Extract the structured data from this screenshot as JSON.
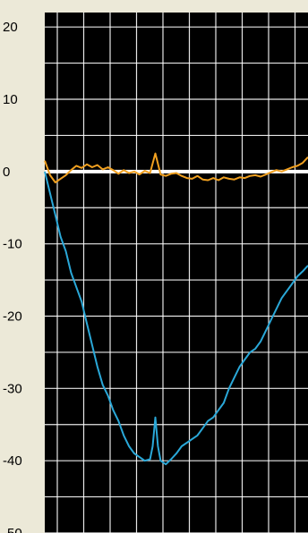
{
  "chart_data": {
    "type": "line",
    "title": "",
    "xlabel": "",
    "ylabel": "",
    "ylim": [
      -50,
      22
    ],
    "y_ticks": [
      20,
      10,
      0,
      -10,
      -20,
      -30,
      -40,
      -50
    ],
    "y_tick_labels": [
      "20",
      "10",
      "0",
      "-10",
      "-20",
      "-30",
      "-40",
      "-50"
    ],
    "grid": true,
    "background_color": "#000000",
    "grid_color": "#ffffff",
    "reference_line": {
      "y": 0,
      "color": "#ffffff"
    },
    "xlim": [
      0,
      100
    ],
    "series": [
      {
        "color": "#f0a020",
        "x": [
          0,
          2,
          4,
          6,
          8,
          10,
          12,
          14,
          16,
          18,
          20,
          22,
          24,
          26,
          28,
          30,
          32,
          34,
          36,
          38,
          40,
          42,
          44,
          46,
          48,
          50,
          52,
          54,
          56,
          58,
          60,
          62,
          64,
          66,
          68,
          70,
          72,
          74,
          76,
          78,
          80,
          82,
          84,
          86,
          88,
          90,
          92,
          94,
          96,
          98,
          100
        ],
        "values": [
          1.5,
          -0.5,
          -1.5,
          -1.0,
          -0.5,
          0.2,
          0.8,
          0.5,
          1.0,
          0.6,
          0.9,
          0.3,
          0.6,
          0.2,
          -0.3,
          0.2,
          -0.2,
          0.0,
          -0.4,
          0.1,
          -0.2,
          2.5,
          -0.4,
          -0.6,
          -0.3,
          -0.2,
          -0.6,
          -0.9,
          -1.0,
          -0.6,
          -1.1,
          -1.2,
          -0.9,
          -1.2,
          -0.8,
          -1.0,
          -1.1,
          -0.8,
          -0.9,
          -0.6,
          -0.5,
          -0.7,
          -0.4,
          -0.1,
          0.2,
          0.0,
          0.3,
          0.6,
          0.8,
          1.2,
          2.0
        ]
      },
      {
        "color": "#2aa8d8",
        "x": [
          0,
          2,
          4,
          6,
          8,
          10,
          12,
          14,
          16,
          18,
          20,
          22,
          24,
          26,
          28,
          30,
          32,
          34,
          36,
          38,
          40,
          41,
          42,
          43,
          44,
          46,
          48,
          50,
          52,
          54,
          56,
          58,
          60,
          62,
          64,
          66,
          68,
          70,
          72,
          74,
          76,
          78,
          80,
          82,
          84,
          86,
          88,
          90,
          92,
          94,
          96,
          98,
          100
        ],
        "values": [
          0,
          -3,
          -6,
          -9,
          -11,
          -14,
          -16,
          -18,
          -21,
          -24,
          -27,
          -29.5,
          -31,
          -33,
          -34.5,
          -36.5,
          -38,
          -39,
          -39.5,
          -40,
          -39.8,
          -38,
          -34,
          -38,
          -40,
          -40.5,
          -39.8,
          -39,
          -38,
          -37.5,
          -37,
          -36.5,
          -35.5,
          -34.5,
          -34,
          -33,
          -32,
          -30,
          -28.5,
          -27,
          -26,
          -25,
          -24.5,
          -23.5,
          -22,
          -20.5,
          -19,
          -17.5,
          -16.5,
          -15.5,
          -14.5,
          -13.8,
          -13
        ]
      }
    ]
  }
}
